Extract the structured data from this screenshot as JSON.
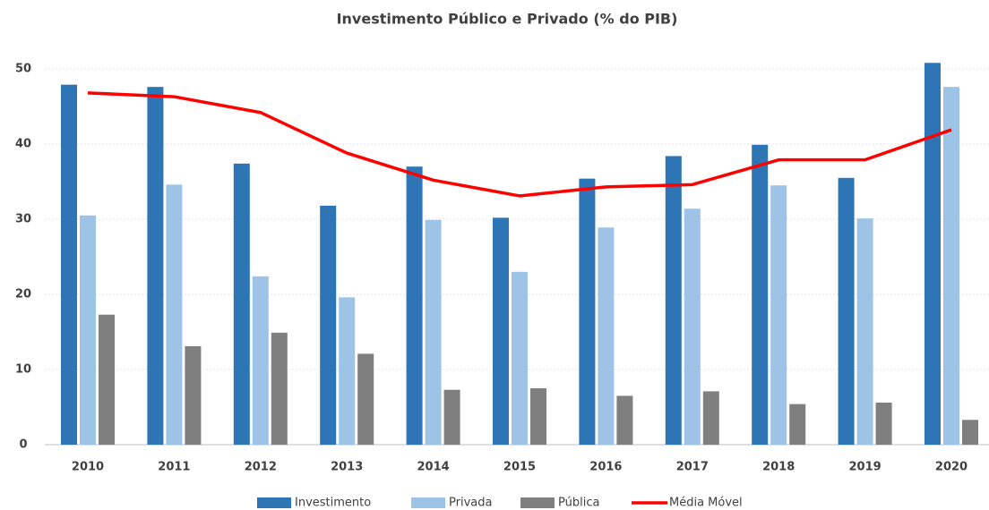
{
  "chart_data": {
    "type": "bar",
    "title": "Investimento Público  e Privado  (% do PIB)",
    "categories": [
      "2010",
      "2011",
      "2012",
      "2013",
      "2014",
      "2015",
      "2016",
      "2017",
      "2018",
      "2019",
      "2020"
    ],
    "series": [
      {
        "name": "Investimento",
        "color": "#2e75b6",
        "type": "bar",
        "values": [
          47.9,
          47.6,
          37.4,
          31.8,
          37.0,
          30.2,
          35.4,
          38.4,
          39.9,
          35.5,
          50.8
        ]
      },
      {
        "name": "Privada",
        "color": "#9dc3e6",
        "type": "bar",
        "values": [
          30.5,
          34.6,
          22.4,
          19.6,
          29.9,
          23.0,
          28.9,
          31.4,
          34.5,
          30.1,
          47.6
        ]
      },
      {
        "name": "Pública",
        "color": "#7f7f7f",
        "type": "bar",
        "values": [
          17.3,
          13.1,
          14.9,
          12.1,
          7.3,
          7.5,
          6.5,
          7.1,
          5.4,
          5.6,
          3.3
        ]
      },
      {
        "name": "Média Móvel",
        "color": "#ff0000",
        "type": "line",
        "values": [
          46.8,
          46.3,
          44.2,
          38.8,
          35.2,
          33.1,
          34.3,
          34.6,
          37.9,
          37.9,
          41.9
        ]
      }
    ],
    "ylim": [
      0,
      55
    ],
    "yticks": [
      0,
      10,
      20,
      30,
      40,
      50
    ],
    "grid": true,
    "legend": "bottom"
  }
}
